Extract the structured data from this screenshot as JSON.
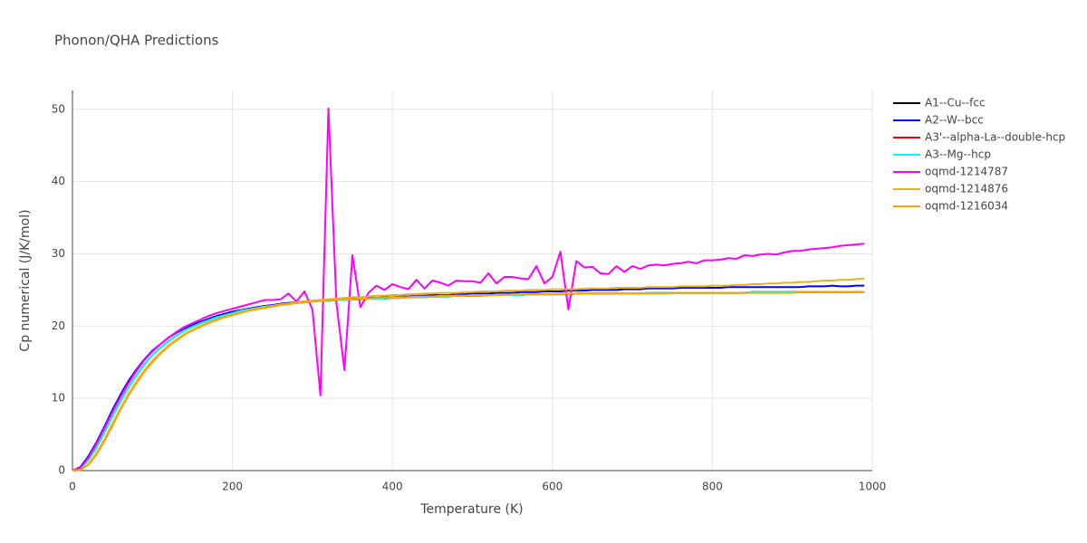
{
  "chart_data": {
    "type": "line",
    "title": "Phonon/QHA Predictions",
    "x_label": "Temperature (K)",
    "y_label": "Cp numerical (J/K/mol)",
    "xlim": [
      0,
      1000
    ],
    "xticks": [
      0,
      200,
      400,
      600,
      800,
      1000
    ],
    "ylim": [
      0,
      52.6
    ],
    "yticks": [
      0,
      10,
      20,
      30,
      40,
      50
    ],
    "grid": true,
    "legend": "right",
    "x": [
      0,
      10,
      20,
      30,
      40,
      50,
      60,
      70,
      80,
      90,
      100,
      110,
      120,
      130,
      140,
      150,
      160,
      170,
      180,
      190,
      200,
      210,
      220,
      230,
      240,
      250,
      260,
      270,
      280,
      290,
      300,
      310,
      320,
      330,
      340,
      350,
      360,
      370,
      380,
      390,
      400,
      410,
      420,
      430,
      440,
      450,
      460,
      470,
      480,
      490,
      500,
      510,
      520,
      530,
      540,
      550,
      560,
      570,
      580,
      590,
      600,
      610,
      620,
      630,
      640,
      650,
      660,
      670,
      680,
      690,
      700,
      710,
      720,
      730,
      740,
      750,
      760,
      770,
      780,
      790,
      800,
      810,
      820,
      830,
      840,
      850,
      860,
      870,
      880,
      890,
      900,
      910,
      920,
      930,
      940,
      950,
      960,
      970,
      980,
      990
    ],
    "series": [
      {
        "name": "A1--Cu--fcc",
        "color": "#000000",
        "values": [
          0,
          0.3,
          1.5,
          3.2,
          5.3,
          7.5,
          9.6,
          11.5,
          13.2,
          14.7,
          16.0,
          17.0,
          17.9,
          18.7,
          19.4,
          19.9,
          20.4,
          20.8,
          21.2,
          21.5,
          21.8,
          22.1,
          22.3,
          22.5,
          22.7,
          22.8,
          23.0,
          23.1,
          23.2,
          23.3,
          23.4,
          23.5,
          23.5,
          23.6,
          23.6,
          23.7,
          23.7,
          23.8,
          23.8,
          23.8,
          23.9,
          23.9,
          24.0,
          24.0,
          24.0,
          24.1,
          24.1,
          24.1,
          24.2,
          24.2,
          24.2,
          24.2,
          24.3,
          24.3,
          24.3,
          24.3,
          24.3,
          24.4,
          24.4,
          24.4,
          24.4,
          24.4,
          24.4,
          24.5,
          24.5,
          24.5,
          24.5,
          24.5,
          24.5,
          24.5,
          24.5,
          24.5,
          24.6,
          24.6,
          24.6,
          24.6,
          24.6,
          24.6,
          24.6,
          24.6,
          24.6,
          24.6,
          24.6,
          24.6,
          24.6,
          24.7,
          24.7,
          24.7,
          24.7,
          24.7,
          24.7,
          24.7,
          24.7,
          24.7,
          24.7,
          24.7,
          24.7,
          24.7,
          24.7,
          24.7
        ]
      },
      {
        "name": "A2--W--bcc",
        "color": "#0000ff",
        "values": [
          0,
          0.5,
          2.0,
          3.9,
          6.1,
          8.4,
          10.5,
          12.4,
          14.0,
          15.4,
          16.6,
          17.5,
          18.4,
          19.1,
          19.7,
          20.2,
          20.6,
          21.0,
          21.4,
          21.7,
          22.0,
          22.2,
          22.4,
          22.6,
          22.8,
          22.9,
          23.1,
          23.2,
          23.3,
          23.4,
          23.5,
          23.6,
          23.6,
          23.7,
          23.7,
          23.8,
          23.8,
          23.9,
          23.9,
          24.0,
          24.0,
          24.1,
          24.1,
          24.2,
          24.2,
          24.3,
          24.3,
          24.3,
          24.4,
          24.4,
          24.5,
          24.5,
          24.5,
          24.6,
          24.6,
          24.6,
          24.7,
          24.7,
          24.7,
          24.8,
          24.8,
          24.8,
          24.9,
          24.9,
          24.9,
          25.0,
          25.0,
          25.0,
          25.0,
          25.1,
          25.1,
          25.1,
          25.2,
          25.2,
          25.2,
          25.2,
          25.3,
          25.3,
          25.3,
          25.3,
          25.3,
          25.3,
          25.4,
          25.4,
          25.4,
          25.4,
          25.4,
          25.4,
          25.4,
          25.4,
          25.4,
          25.4,
          25.5,
          25.5,
          25.5,
          25.6,
          25.5,
          25.5,
          25.6,
          25.6
        ]
      },
      {
        "name": "A3'--alpha-La--double-hcp",
        "color": "#ff0000",
        "values": [
          0,
          0.3,
          1.5,
          3.2,
          5.3,
          7.5,
          9.6,
          11.5,
          13.2,
          14.7,
          16.0,
          17.0,
          17.9,
          18.7,
          19.4,
          19.9,
          20.4,
          20.8,
          21.2,
          21.5,
          21.8,
          22.1,
          22.3,
          22.5,
          22.7,
          22.8,
          23.0,
          23.1,
          23.2,
          23.3,
          23.4,
          23.5,
          23.5,
          23.6,
          23.6,
          23.7,
          23.7,
          23.8,
          23.8,
          23.8,
          23.9,
          23.9,
          24.0,
          24.0,
          24.0,
          24.1,
          24.1,
          24.1,
          24.2,
          24.2,
          24.2,
          24.2,
          24.3,
          24.3,
          24.3,
          24.3,
          24.3,
          24.4,
          24.4,
          24.4,
          24.4,
          24.4,
          24.4,
          24.5,
          24.5,
          24.5,
          24.5,
          24.5,
          24.5,
          24.5,
          24.5,
          24.5,
          24.6,
          24.6,
          24.6,
          24.6,
          24.6,
          24.6,
          24.6,
          24.6,
          24.6,
          24.6,
          24.6,
          24.6,
          24.6,
          24.7,
          24.7,
          24.7,
          24.7,
          24.7,
          24.7,
          24.7,
          24.7,
          24.7,
          24.7,
          24.7,
          24.7,
          24.7,
          24.7,
          24.7
        ]
      },
      {
        "name": "A3--Mg--hcp",
        "color": "#00ffff",
        "values": [
          0,
          0.3,
          1.5,
          3.2,
          5.3,
          7.5,
          9.6,
          11.5,
          13.2,
          14.7,
          16.0,
          17.0,
          17.9,
          18.7,
          19.4,
          19.9,
          20.4,
          20.8,
          21.2,
          21.5,
          21.8,
          22.1,
          22.3,
          22.5,
          22.7,
          22.8,
          23.0,
          23.1,
          23.2,
          23.3,
          23.4,
          23.5,
          23.5,
          23.6,
          23.6,
          23.7,
          23.7,
          23.8,
          23.8,
          23.8,
          23.9,
          23.9,
          24.0,
          24.0,
          24.0,
          24.1,
          24.1,
          24.1,
          24.2,
          24.2,
          24.2,
          24.2,
          24.3,
          24.3,
          24.3,
          24.3,
          24.3,
          24.4,
          24.4,
          24.4,
          24.4,
          24.4,
          24.4,
          24.5,
          24.5,
          24.5,
          24.5,
          24.5,
          24.5,
          24.5,
          24.5,
          24.5,
          24.6,
          24.6,
          24.6,
          24.6,
          24.6,
          24.6,
          24.6,
          24.6,
          24.6,
          24.6,
          24.6,
          24.6,
          24.6,
          24.7,
          24.7,
          24.7,
          24.7,
          24.7,
          24.7,
          24.7,
          24.7,
          24.7,
          24.7,
          24.7,
          24.7,
          24.7,
          24.7,
          24.7
        ]
      },
      {
        "name": "oqmd-1214787",
        "color": "#ff00ff",
        "values": [
          0,
          0.4,
          1.8,
          3.7,
          5.9,
          8.1,
          10.2,
          12.1,
          13.8,
          15.3,
          16.5,
          17.5,
          18.4,
          19.2,
          19.9,
          20.4,
          20.9,
          21.4,
          21.8,
          22.1,
          22.4,
          22.7,
          23.0,
          23.3,
          23.6,
          23.6,
          23.7,
          24.5,
          23.4,
          24.8,
          22.3,
          10.4,
          50.1,
          23.2,
          13.9,
          29.8,
          22.6,
          24.6,
          25.6,
          25.0,
          25.8,
          25.4,
          25.1,
          26.4,
          25.2,
          26.3,
          26.0,
          25.6,
          26.3,
          26.2,
          26.2,
          26.0,
          27.3,
          25.9,
          26.8,
          26.8,
          26.6,
          26.5,
          28.3,
          25.9,
          26.8,
          30.3,
          22.3,
          29.0,
          28.1,
          28.2,
          27.3,
          27.2,
          28.3,
          27.5,
          28.3,
          27.9,
          28.4,
          28.5,
          28.4,
          28.6,
          28.7,
          28.9,
          28.7,
          29.1,
          29.1,
          29.2,
          29.4,
          29.3,
          29.8,
          29.7,
          29.9,
          30.0,
          29.9,
          30.2,
          30.4,
          30.4,
          30.6,
          30.7,
          30.8,
          30.9,
          31.1,
          31.2,
          31.3,
          31.4
        ]
      },
      {
        "name": "oqmd-1214876",
        "color": "#e8b21c",
        "values": [
          0,
          0.1,
          0.9,
          2.4,
          4.3,
          6.5,
          8.6,
          10.6,
          12.3,
          13.9,
          15.2,
          16.3,
          17.3,
          18.1,
          18.9,
          19.5,
          20.0,
          20.5,
          20.9,
          21.3,
          21.6,
          21.9,
          22.2,
          22.4,
          22.6,
          22.8,
          23.0,
          23.1,
          23.3,
          23.4,
          23.5,
          23.6,
          23.7,
          23.8,
          23.9,
          24.0,
          24.0,
          24.1,
          24.2,
          24.2,
          24.3,
          24.3,
          24.4,
          24.4,
          24.5,
          24.5,
          24.6,
          24.6,
          24.6,
          24.7,
          24.7,
          24.8,
          24.8,
          24.8,
          24.9,
          24.9,
          24.9,
          25.0,
          25.0,
          25.0,
          25.1,
          25.1,
          25.1,
          25.1,
          25.2,
          25.2,
          25.2,
          25.2,
          25.3,
          25.3,
          25.3,
          25.3,
          25.4,
          25.4,
          25.4,
          25.4,
          25.5,
          25.5,
          25.5,
          25.5,
          25.6,
          25.6,
          25.6,
          25.7,
          25.7,
          25.8,
          25.8,
          25.9,
          25.9,
          26.0,
          26.0,
          26.1,
          26.1,
          26.2,
          26.3,
          26.3,
          26.4,
          26.4,
          26.5,
          26.6
        ]
      },
      {
        "name": "oqmd-1216034",
        "color": "#ffa500",
        "values": [
          0,
          0.1,
          0.8,
          2.2,
          4.1,
          6.2,
          8.4,
          10.4,
          12.1,
          13.7,
          15.0,
          16.2,
          17.2,
          18.0,
          18.8,
          19.4,
          19.9,
          20.4,
          20.8,
          21.2,
          21.5,
          21.8,
          22.1,
          22.3,
          22.5,
          22.7,
          22.9,
          23.0,
          23.2,
          23.3,
          23.4,
          23.5,
          23.6,
          23.6,
          23.7,
          23.7,
          23.8,
          23.8,
          23.9,
          23.9,
          24.0,
          24.0,
          24.0,
          24.1,
          24.1,
          24.1,
          24.2,
          24.2,
          24.2,
          24.2,
          24.3,
          24.3,
          24.3,
          24.3,
          24.3,
          24.4,
          24.4,
          24.4,
          24.4,
          24.4,
          24.4,
          24.5,
          24.5,
          24.5,
          24.5,
          24.5,
          24.5,
          24.5,
          24.5,
          24.5,
          24.5,
          24.5,
          24.5,
          24.5,
          24.5,
          24.6,
          24.6,
          24.6,
          24.6,
          24.6,
          24.6,
          24.6,
          24.6,
          24.6,
          24.6,
          24.6,
          24.6,
          24.6,
          24.6,
          24.6,
          24.6,
          24.7,
          24.7,
          24.7,
          24.7,
          24.7,
          24.7,
          24.7,
          24.7,
          24.7
        ]
      }
    ]
  }
}
